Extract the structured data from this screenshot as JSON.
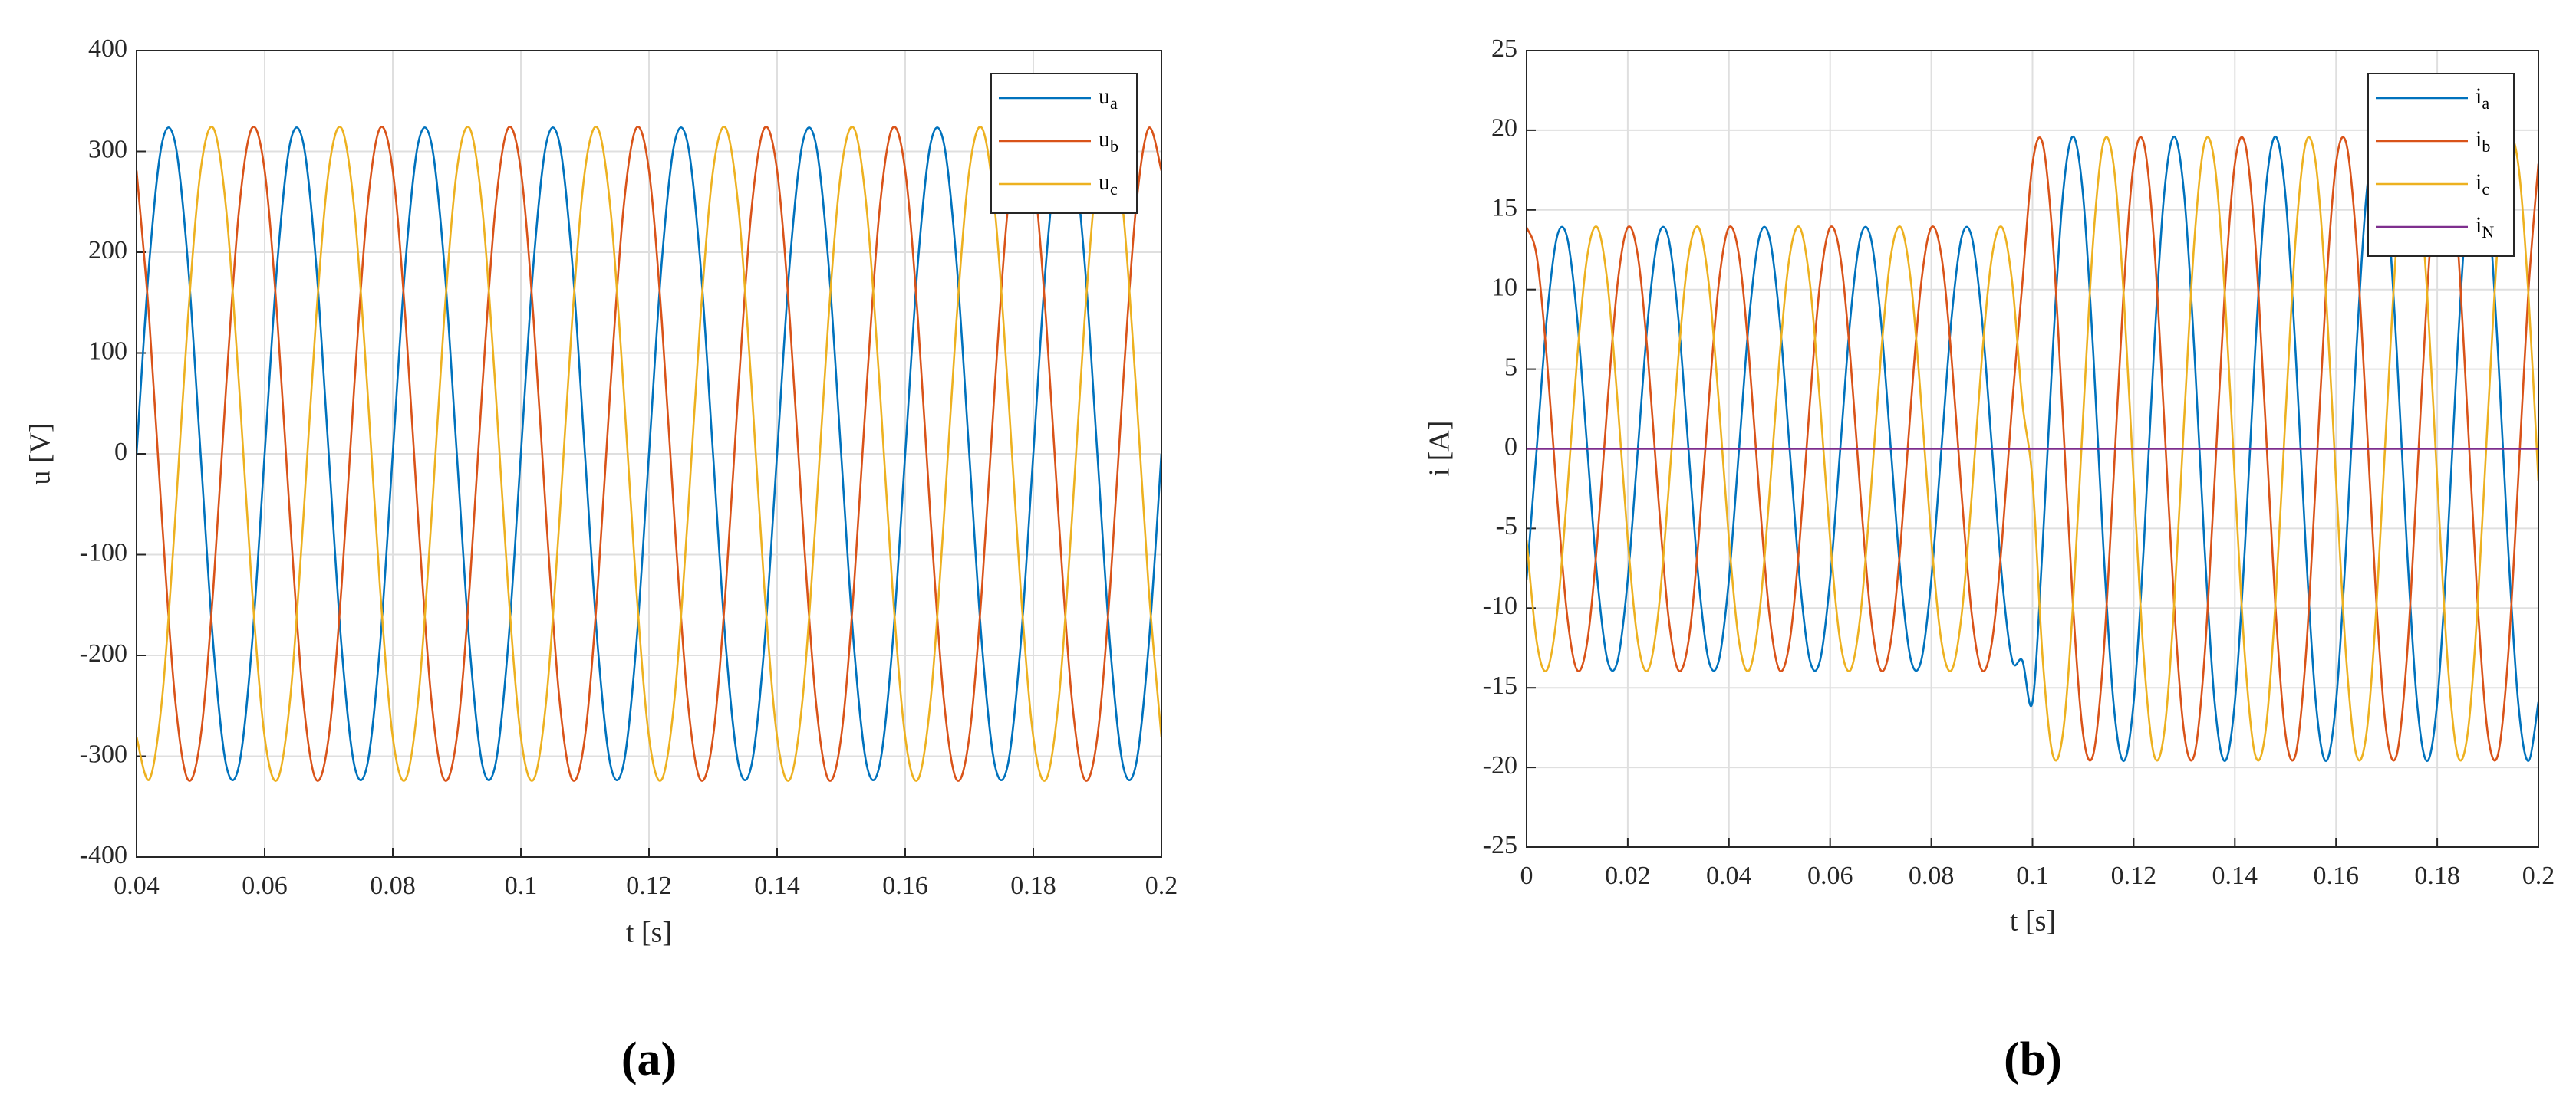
{
  "chart_data": [
    {
      "type": "line",
      "panel_label": "(a)",
      "x_label": "t [s]",
      "y_label": "u [V]",
      "xlim": [
        0.04,
        0.2
      ],
      "xticks": [
        0.04,
        0.06,
        0.08,
        0.1,
        0.12,
        0.14,
        0.16,
        0.18,
        0.2
      ],
      "ylim": [
        -400,
        400
      ],
      "yticks": [
        -400,
        -300,
        -200,
        -100,
        0,
        100,
        200,
        300,
        400
      ],
      "grid": true,
      "legend": "upper right",
      "x": [
        0.04,
        0.042,
        0.044,
        0.046,
        0.048,
        0.05,
        0.052,
        0.054,
        0.056,
        0.058,
        0.06,
        0.062,
        0.064,
        0.066,
        0.068,
        0.07,
        0.072,
        0.074,
        0.076,
        0.078,
        0.08,
        0.082,
        0.084,
        0.086,
        0.088,
        0.09,
        0.092,
        0.094,
        0.096,
        0.098,
        0.1,
        0.102,
        0.104,
        0.106,
        0.108,
        0.11,
        0.112,
        0.114,
        0.116,
        0.118,
        0.12,
        0.122,
        0.124,
        0.126,
        0.128,
        0.13,
        0.132,
        0.134,
        0.136,
        0.138,
        0.14,
        0.142,
        0.144,
        0.146,
        0.148,
        0.15,
        0.152,
        0.154,
        0.156,
        0.158,
        0.16,
        0.162,
        0.164,
        0.166,
        0.168,
        0.17,
        0.172,
        0.174,
        0.176,
        0.178,
        0.18,
        0.182,
        0.184,
        0.186,
        0.188,
        0.19,
        0.192,
        0.194,
        0.196,
        0.198,
        0.2
      ],
      "series": [
        {
          "name": "ua",
          "color": "#0072BD",
          "values": [
            0,
            191,
            309,
            309,
            191,
            0,
            -191,
            -309,
            -309,
            -191,
            0,
            191,
            309,
            309,
            191,
            0,
            -191,
            -309,
            -309,
            -191,
            0,
            191,
            309,
            309,
            191,
            0,
            -191,
            -309,
            -309,
            -191,
            0,
            191,
            309,
            309,
            191,
            0,
            -191,
            -309,
            -309,
            -191,
            0,
            191,
            309,
            309,
            191,
            0,
            -191,
            -309,
            -309,
            -191,
            0,
            191,
            309,
            309,
            191,
            0,
            -191,
            -309,
            -309,
            -191,
            0,
            191,
            309,
            309,
            191,
            0,
            -191,
            -309,
            -309,
            -191,
            0,
            191,
            309,
            309,
            191,
            0,
            -191,
            -309,
            -309,
            -191,
            0
          ]
        },
        {
          "name": "ub",
          "color": "#D95319",
          "values": [
            281,
            132,
            -68,
            -242,
            -323,
            -281,
            -132,
            68,
            242,
            323,
            281,
            132,
            -68,
            -242,
            -323,
            -281,
            -132,
            68,
            242,
            323,
            281,
            132,
            -68,
            -242,
            -323,
            -281,
            -132,
            68,
            242,
            323,
            281,
            132,
            -68,
            -242,
            -323,
            -281,
            -132,
            68,
            242,
            323,
            281,
            132,
            -68,
            -242,
            -323,
            -281,
            -132,
            68,
            242,
            323,
            281,
            132,
            -68,
            -242,
            -323,
            -281,
            -132,
            68,
            242,
            323,
            281,
            132,
            -68,
            -242,
            -323,
            -281,
            -132,
            68,
            242,
            323,
            281,
            132,
            -68,
            -242,
            -323,
            -281,
            -132,
            68,
            242,
            323,
            281
          ]
        },
        {
          "name": "uc",
          "color": "#EDB120",
          "values": [
            -281,
            -323,
            -242,
            -68,
            132,
            281,
            323,
            242,
            68,
            -132,
            -281,
            -323,
            -242,
            -68,
            132,
            281,
            323,
            242,
            68,
            -132,
            -281,
            -323,
            -242,
            -68,
            132,
            281,
            323,
            242,
            68,
            -132,
            -281,
            -323,
            -242,
            -68,
            132,
            281,
            323,
            242,
            68,
            -132,
            -281,
            -323,
            -242,
            -68,
            132,
            281,
            323,
            242,
            68,
            -132,
            -281,
            -323,
            -242,
            -68,
            132,
            281,
            323,
            242,
            68,
            -132,
            -281,
            -323,
            -242,
            -68,
            132,
            281,
            323,
            242,
            68,
            -132,
            -281,
            -323,
            -242,
            -68,
            132,
            281,
            323,
            242,
            68,
            -132,
            -281
          ]
        }
      ]
    },
    {
      "type": "line",
      "panel_label": "(b)",
      "x_label": "t [s]",
      "y_label": "i [A]",
      "xlim": [
        0,
        0.2
      ],
      "xticks": [
        0,
        0.02,
        0.04,
        0.06,
        0.08,
        0.1,
        0.12,
        0.14,
        0.16,
        0.18,
        0.2
      ],
      "ylim": [
        -25,
        25
      ],
      "yticks": [
        -25,
        -20,
        -15,
        -10,
        -5,
        0,
        5,
        10,
        15,
        20,
        25
      ],
      "grid": true,
      "legend": "upper right",
      "x": [
        0,
        0.002,
        0.004,
        0.006,
        0.008,
        0.01,
        0.012,
        0.014,
        0.016,
        0.018,
        0.02,
        0.022,
        0.024,
        0.026,
        0.028,
        0.03,
        0.032,
        0.034,
        0.036,
        0.038,
        0.04,
        0.042,
        0.044,
        0.046,
        0.048,
        0.05,
        0.052,
        0.054,
        0.056,
        0.058,
        0.06,
        0.062,
        0.064,
        0.066,
        0.068,
        0.07,
        0.072,
        0.074,
        0.076,
        0.078,
        0.08,
        0.082,
        0.084,
        0.086,
        0.088,
        0.09,
        0.092,
        0.094,
        0.096,
        0.098,
        0.1,
        0.102,
        0.104,
        0.106,
        0.108,
        0.11,
        0.112,
        0.114,
        0.116,
        0.118,
        0.12,
        0.122,
        0.124,
        0.126,
        0.128,
        0.13,
        0.132,
        0.134,
        0.136,
        0.138,
        0.14,
        0.142,
        0.144,
        0.146,
        0.148,
        0.15,
        0.152,
        0.154,
        0.156,
        0.158,
        0.16,
        0.162,
        0.164,
        0.166,
        0.168,
        0.17,
        0.172,
        0.174,
        0.176,
        0.178,
        0.18,
        0.182,
        0.184,
        0.186,
        0.188,
        0.19,
        0.192,
        0.194,
        0.196,
        0.198,
        0.2
      ],
      "series": [
        {
          "name": "ia",
          "color": "#0072BD",
          "values": [
            -8.2,
            0,
            8.2,
            13.3,
            13.3,
            8.2,
            0,
            -8.2,
            -13.3,
            -13.3,
            -8.2,
            0,
            8.2,
            13.3,
            13.3,
            8.2,
            0,
            -8.2,
            -13.3,
            -13.3,
            -8.2,
            0,
            8.2,
            13.3,
            13.3,
            8.2,
            0,
            -8.2,
            -13.3,
            -13.3,
            -8.2,
            0,
            8.2,
            13.3,
            13.3,
            8.2,
            0,
            -8.2,
            -13.3,
            -13.3,
            -8.2,
            0,
            8.2,
            13.3,
            13.3,
            8.2,
            0,
            -8.2,
            -13.3,
            -13.3,
            -15.9,
            -6.1,
            6.1,
            15.9,
            19.6,
            15.9,
            6.1,
            -6.1,
            -15.9,
            -19.6,
            -15.9,
            -6.1,
            6.1,
            15.9,
            19.6,
            15.9,
            6.1,
            -6.1,
            -15.9,
            -19.6,
            -15.9,
            -6.1,
            6.1,
            15.9,
            19.6,
            15.9,
            6.1,
            -6.1,
            -15.9,
            -19.6,
            -15.9,
            -6.1,
            6.1,
            15.9,
            19.6,
            15.9,
            6.1,
            -6.1,
            -15.9,
            -19.6,
            -15.9,
            -6.1,
            6.1,
            15.9,
            19.6,
            15.9,
            6.1,
            -6.1,
            -15.9,
            -19.6,
            -15.9
          ]
        },
        {
          "name": "ib",
          "color": "#D95319",
          "values": [
            13.9,
            12.1,
            5.7,
            -2.9,
            -10.4,
            -13.9,
            -12.1,
            -5.7,
            2.9,
            10.4,
            13.9,
            12.1,
            5.7,
            -2.9,
            -10.4,
            -13.9,
            -12.1,
            -5.7,
            2.9,
            10.4,
            13.9,
            12.1,
            5.7,
            -2.9,
            -10.4,
            -13.9,
            -12.1,
            -5.7,
            2.9,
            10.4,
            13.9,
            12.1,
            5.7,
            -2.9,
            -10.4,
            -13.9,
            -12.1,
            -5.7,
            2.9,
            10.4,
            13.9,
            12.1,
            5.7,
            -2.9,
            -10.4,
            -13.9,
            -12.1,
            -5.7,
            2.9,
            10.4,
            17.9,
            19.2,
            13.1,
            2,
            -9.8,
            -17.9,
            -19.2,
            -13.1,
            -2,
            9.8,
            17.9,
            19.2,
            13.1,
            2,
            -9.8,
            -17.9,
            -19.2,
            -13.1,
            -2,
            9.8,
            17.9,
            19.2,
            13.1,
            2,
            -9.8,
            -17.9,
            -19.2,
            -13.1,
            -2,
            9.8,
            17.9,
            19.2,
            13.1,
            2,
            -9.8,
            -17.9,
            -19.2,
            -13.1,
            -2,
            9.8,
            17.9,
            19.2,
            13.1,
            2,
            -9.8,
            -17.9,
            -19.2,
            -13.1,
            -2,
            9.8,
            17.9
          ]
        },
        {
          "name": "ic",
          "color": "#EDB120",
          "values": [
            -5.7,
            -12.1,
            -13.9,
            -10.4,
            -2.9,
            5.7,
            12.1,
            13.9,
            10.4,
            2.9,
            -5.7,
            -12.1,
            -13.9,
            -10.4,
            -2.9,
            5.7,
            12.1,
            13.9,
            10.4,
            2.9,
            -5.7,
            -12.1,
            -13.9,
            -10.4,
            -2.9,
            5.7,
            12.1,
            13.9,
            10.4,
            2.9,
            -5.7,
            -12.1,
            -13.9,
            -10.4,
            -2.9,
            5.7,
            12.1,
            13.9,
            10.4,
            2.9,
            -5.7,
            -12.1,
            -13.9,
            -10.4,
            -2.9,
            5.7,
            12.1,
            13.9,
            10.4,
            2.9,
            -2,
            -13.1,
            -19.2,
            -17.9,
            -9.8,
            2,
            13.1,
            19.2,
            17.9,
            9.8,
            -2,
            -13.1,
            -19.2,
            -17.9,
            -9.8,
            2,
            13.1,
            19.2,
            17.9,
            9.8,
            -2,
            -13.1,
            -19.2,
            -17.9,
            -9.8,
            2,
            13.1,
            19.2,
            17.9,
            9.8,
            -2,
            -13.1,
            -19.2,
            -17.9,
            -9.8,
            2,
            13.1,
            19.2,
            17.9,
            9.8,
            -2,
            -13.1,
            -19.2,
            -17.9,
            -9.8,
            2,
            13.1,
            19.2,
            17.9,
            9.8,
            -2
          ]
        },
        {
          "name": "iN",
          "color": "#7E2F8E",
          "values": [
            0,
            0,
            0,
            0,
            0,
            0,
            0,
            0,
            0,
            0,
            0,
            0,
            0,
            0,
            0,
            0,
            0,
            0,
            0,
            0,
            0,
            0,
            0,
            0,
            0,
            0,
            0,
            0,
            0,
            0,
            0,
            0,
            0,
            0,
            0,
            0,
            0,
            0,
            0,
            0,
            0,
            0,
            0,
            0,
            0,
            0,
            0,
            0,
            0,
            0,
            0,
            0,
            0,
            0,
            0,
            0,
            0,
            0,
            0,
            0,
            0,
            0,
            0,
            0,
            0,
            0,
            0,
            0,
            0,
            0,
            0,
            0,
            0,
            0,
            0,
            0,
            0,
            0,
            0,
            0,
            0,
            0,
            0,
            0,
            0,
            0,
            0,
            0,
            0,
            0,
            0,
            0,
            0,
            0,
            0,
            0,
            0,
            0,
            0,
            0,
            0
          ]
        }
      ]
    }
  ]
}
